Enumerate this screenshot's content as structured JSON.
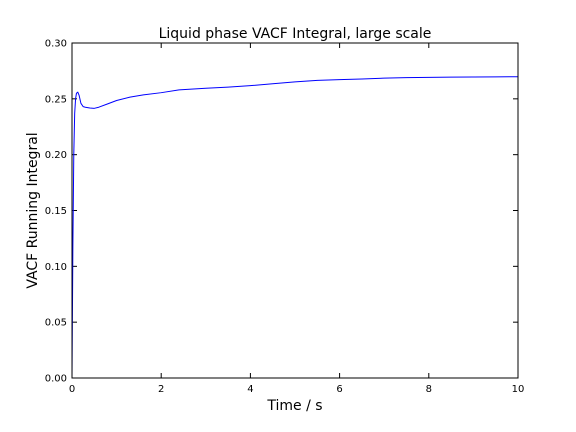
{
  "chart_data": {
    "type": "line",
    "title": "Liquid phase VACF Integral, large scale",
    "xlabel": "Time / s",
    "ylabel": "VACF Running Integral",
    "xlim": [
      0,
      10
    ],
    "ylim": [
      0.0,
      0.3
    ],
    "xticks": [
      "0",
      "2",
      "4",
      "6",
      "8",
      "10"
    ],
    "yticks": [
      "0.00",
      "0.05",
      "0.10",
      "0.15",
      "0.20",
      "0.25",
      "0.30"
    ],
    "grid": false,
    "legend": "none",
    "series": [
      {
        "color": "#0000ff",
        "x": [
          0.0,
          0.02,
          0.04,
          0.06,
          0.08,
          0.1,
          0.13,
          0.16,
          0.2,
          0.25,
          0.3,
          0.4,
          0.5,
          0.6,
          0.8,
          1.0,
          1.3,
          1.6,
          2.0,
          2.4,
          3.0,
          3.5,
          4.0,
          4.5,
          5.0,
          5.5,
          6.0,
          6.5,
          7.0,
          7.5,
          8.0,
          8.5,
          9.0,
          9.5,
          10.0
        ],
        "y": [
          0.0,
          0.12,
          0.2,
          0.237,
          0.25,
          0.255,
          0.256,
          0.253,
          0.246,
          0.243,
          0.2425,
          0.2418,
          0.2415,
          0.2425,
          0.2455,
          0.2485,
          0.2515,
          0.2535,
          0.2555,
          0.258,
          0.2595,
          0.2605,
          0.2618,
          0.2635,
          0.2652,
          0.2665,
          0.2672,
          0.2678,
          0.2685,
          0.269,
          0.2692,
          0.2694,
          0.2696,
          0.2697,
          0.2698
        ]
      }
    ]
  }
}
